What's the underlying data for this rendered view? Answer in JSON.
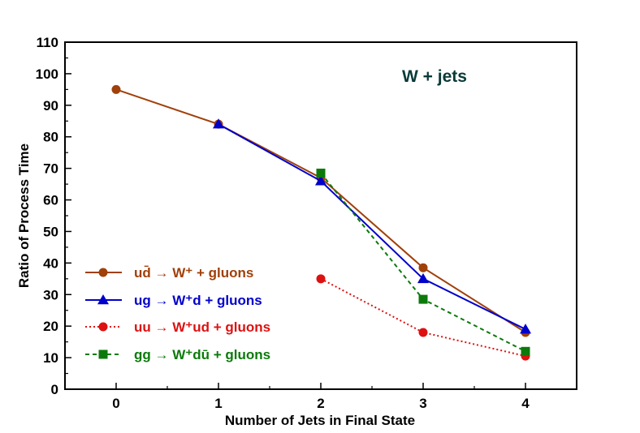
{
  "chart_data": {
    "type": "line",
    "title": "W + jets",
    "xlabel": "Number of Jets in Final State",
    "ylabel": "Ratio of Process Time",
    "xlim": [
      -0.5,
      4.5
    ],
    "ylim": [
      0,
      110
    ],
    "x_ticks": [
      0,
      1,
      2,
      3,
      4
    ],
    "y_ticks": [
      0,
      10,
      20,
      30,
      40,
      50,
      60,
      70,
      80,
      90,
      100,
      110
    ],
    "legend_position": "center-left",
    "series": [
      {
        "id": "ud",
        "name": "ud̄ → W⁺ + gluons",
        "color": "#a0400a",
        "marker": "circle",
        "line_style": "solid",
        "x": [
          0,
          1,
          2,
          3,
          4
        ],
        "values": [
          95,
          84,
          67,
          38.5,
          18
        ]
      },
      {
        "id": "ug",
        "name": "ug → W⁺d + gluons",
        "color": "#0000cc",
        "marker": "triangle",
        "line_style": "solid",
        "x": [
          1,
          2,
          3,
          4
        ],
        "values": [
          84,
          66,
          35,
          19
        ]
      },
      {
        "id": "uu",
        "name": "uu → W⁺ud + gluons",
        "color": "#dd1111",
        "marker": "circle",
        "line_style": "dotted",
        "x": [
          2,
          3,
          4
        ],
        "values": [
          35,
          18,
          10.5
        ]
      },
      {
        "id": "gg",
        "name": "gg → W⁺dū + gluons",
        "color": "#0b7a0b",
        "marker": "square",
        "line_style": "dashed",
        "x": [
          2,
          3,
          4
        ],
        "values": [
          68.5,
          28.5,
          12
        ]
      }
    ]
  }
}
